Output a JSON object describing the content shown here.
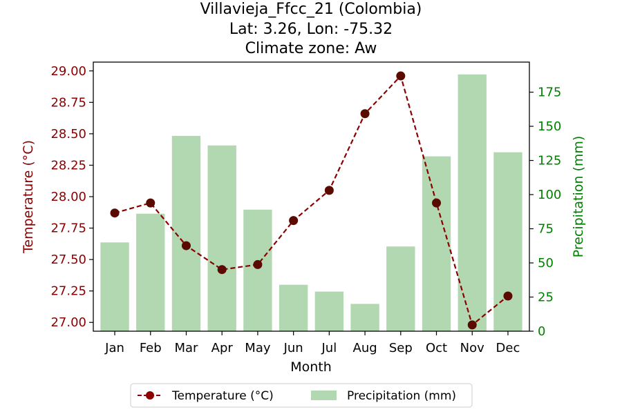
{
  "chart_data": {
    "type": "bar+line",
    "title_lines": [
      "Villavieja_Ffcc_21 (Colombia)",
      "Lat: 3.26, Lon: -75.32",
      "Climate zone: Aw"
    ],
    "categories": [
      "Jan",
      "Feb",
      "Mar",
      "Apr",
      "May",
      "Jun",
      "Jul",
      "Aug",
      "Sep",
      "Oct",
      "Nov",
      "Dec"
    ],
    "xlabel": "Month",
    "temperature": {
      "name": "Temperature (°C)",
      "axis_label": "Temperature (°C)",
      "values": [
        27.87,
        27.95,
        27.61,
        27.42,
        27.46,
        27.81,
        28.05,
        28.66,
        28.96,
        27.95,
        26.98,
        27.21
      ],
      "ylim": [
        26.93,
        29.07
      ],
      "ticks": [
        27.0,
        27.25,
        27.5,
        27.75,
        28.0,
        28.25,
        28.5,
        28.75,
        29.0
      ],
      "tick_labels": [
        "27.00",
        "27.25",
        "27.50",
        "27.75",
        "28.00",
        "28.25",
        "28.50",
        "28.75",
        "29.00"
      ],
      "color": "#8b0000",
      "marker_color": "#5a0a00"
    },
    "precipitation": {
      "name": "Precipitation (mm)",
      "axis_label": "Precipitation (mm)",
      "values": [
        65,
        86,
        143,
        136,
        89,
        34,
        29,
        20,
        62,
        128,
        188,
        131
      ],
      "ylim": [
        0,
        197
      ],
      "ticks": [
        0,
        25,
        50,
        75,
        100,
        125,
        150,
        175
      ],
      "tick_labels": [
        "0",
        "25",
        "50",
        "75",
        "100",
        "125",
        "150",
        "175"
      ],
      "color": "#b2d8b2",
      "axis_color": "#008000"
    },
    "legend": {
      "placement": "bottom-center",
      "entries": [
        "Temperature (°C)",
        "Precipitation (mm)"
      ]
    }
  }
}
